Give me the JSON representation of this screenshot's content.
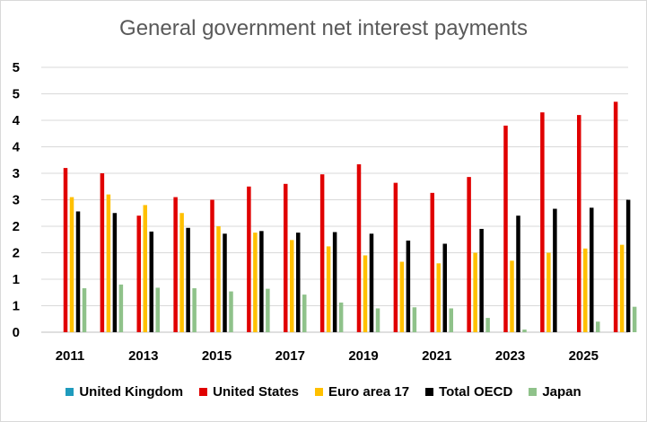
{
  "chart_data": {
    "type": "bar",
    "title": "General government net interest payments",
    "xlabel": "",
    "ylabel": "",
    "ylim": [
      0,
      5
    ],
    "y_ticks": [
      0,
      0.5,
      1,
      1.5,
      2,
      2.5,
      3,
      3.5,
      4,
      4.5,
      5
    ],
    "y_tick_labels": [
      "0",
      "1",
      "1",
      "2",
      "2",
      "3",
      "3",
      "4",
      "4",
      "5",
      "5"
    ],
    "gridlines": true,
    "legend_position": "bottom",
    "categories": [
      "2011",
      "2012",
      "2013",
      "2014",
      "2015",
      "2016",
      "2017",
      "2018",
      "2019",
      "2020",
      "2021",
      "2022",
      "2023",
      "2024",
      "2025",
      "2026"
    ],
    "x_tick_labels": [
      "2011",
      "",
      "2013",
      "",
      "2015",
      "",
      "2017",
      "",
      "2019",
      "",
      "2021",
      "",
      "2023",
      "",
      "2025",
      ""
    ],
    "series": [
      {
        "name": "United Kingdom",
        "color": "#1f9bbd",
        "values": [
          0,
          0,
          0,
          0,
          0,
          0,
          0,
          0,
          0,
          0,
          0,
          0,
          0,
          0,
          0,
          0
        ]
      },
      {
        "name": "United States",
        "color": "#e00000",
        "values": [
          3.1,
          3.0,
          2.2,
          2.55,
          2.5,
          2.75,
          2.8,
          2.98,
          3.17,
          2.82,
          2.63,
          2.93,
          3.9,
          4.15,
          4.1,
          4.35
        ]
      },
      {
        "name": "Euro area 17",
        "color": "#ffc000",
        "values": [
          2.55,
          2.6,
          2.4,
          2.25,
          2.0,
          1.88,
          1.74,
          1.62,
          1.45,
          1.33,
          1.3,
          1.5,
          1.35,
          1.5,
          1.58,
          1.65
        ]
      },
      {
        "name": "Total OECD",
        "color": "#000000",
        "values": [
          2.28,
          2.25,
          1.9,
          1.97,
          1.86,
          1.91,
          1.88,
          1.89,
          1.86,
          1.73,
          1.67,
          1.95,
          2.2,
          2.33,
          2.35,
          2.5
        ]
      },
      {
        "name": "Japan",
        "color": "#8fc28a",
        "values": [
          0.83,
          0.9,
          0.84,
          0.83,
          0.77,
          0.82,
          0.71,
          0.56,
          0.45,
          0.47,
          0.45,
          0.27,
          0.05,
          0,
          0.2,
          0.48
        ]
      }
    ]
  }
}
